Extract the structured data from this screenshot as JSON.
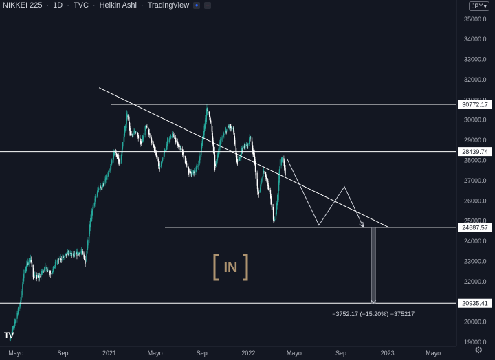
{
  "header": {
    "symbol": "NIKKEI 225",
    "interval": "1D",
    "source": "TVC",
    "chart_style": "Heikin Ashi",
    "platform": "TradingView"
  },
  "currency": "JPY",
  "watermark": "IN",
  "colors": {
    "background": "#131722",
    "bull": "#26a69a",
    "bear": "#ffffff",
    "axis_text": "#b2b5be",
    "hline": "#ffffff",
    "watermark": "#c8a97e"
  },
  "chart_data": {
    "type": "candlestick",
    "x_ticks": [
      "Mayo",
      "Sep",
      "2021",
      "Mayo",
      "Sep",
      "2022",
      "Mayo",
      "Sep",
      "2023",
      "Mayo"
    ],
    "y_ticks": [
      35000,
      34000,
      33000,
      32000,
      31000,
      30000,
      29000,
      28000,
      27000,
      26000,
      25000,
      24000,
      23000,
      22000,
      21000,
      20000,
      19000
    ],
    "ylim": [
      18800,
      35400
    ],
    "price_levels": [
      {
        "label": "30772.17",
        "value": 30772.17
      },
      {
        "label": "28439.74",
        "value": 28439.74
      },
      {
        "label": "24687.57",
        "value": 24687.57
      },
      {
        "label": "20935.41",
        "value": 20935.41
      }
    ],
    "measure_label": "−3752.17 (−15.20%) −375217",
    "price_path": [
      [
        "2020-04-15",
        19200
      ],
      [
        "2020-04-28",
        20000
      ],
      [
        "2020-05-12",
        21000
      ],
      [
        "2020-05-22",
        22500
      ],
      [
        "2020-06-08",
        23200
      ],
      [
        "2020-06-15",
        22300
      ],
      [
        "2020-06-30",
        22200
      ],
      [
        "2020-07-15",
        22700
      ],
      [
        "2020-08-01",
        22400
      ],
      [
        "2020-08-15",
        23000
      ],
      [
        "2020-09-01",
        23200
      ],
      [
        "2020-09-15",
        23400
      ],
      [
        "2020-10-01",
        23300
      ],
      [
        "2020-10-20",
        23500
      ],
      [
        "2020-10-30",
        23000
      ],
      [
        "2020-11-10",
        24800
      ],
      [
        "2020-11-20",
        25800
      ],
      [
        "2020-12-01",
        26500
      ],
      [
        "2020-12-15",
        26800
      ],
      [
        "2020-12-31",
        27400
      ],
      [
        "2021-01-15",
        28500
      ],
      [
        "2021-01-29",
        27800
      ],
      [
        "2021-02-16",
        30400
      ],
      [
        "2021-02-25",
        29200
      ],
      [
        "2021-03-10",
        29500
      ],
      [
        "2021-03-25",
        28800
      ],
      [
        "2021-04-08",
        29800
      ],
      [
        "2021-04-25",
        28800
      ],
      [
        "2021-05-13",
        27600
      ],
      [
        "2021-05-31",
        28800
      ],
      [
        "2021-06-15",
        29300
      ],
      [
        "2021-06-30",
        28800
      ],
      [
        "2021-07-15",
        28200
      ],
      [
        "2021-07-31",
        27300
      ],
      [
        "2021-08-15",
        27500
      ],
      [
        "2021-08-25",
        28000
      ],
      [
        "2021-09-14",
        30600
      ],
      [
        "2021-09-25",
        29800
      ],
      [
        "2021-10-05",
        27600
      ],
      [
        "2021-10-20",
        29000
      ],
      [
        "2021-11-10",
        29700
      ],
      [
        "2021-11-22",
        29500
      ],
      [
        "2021-12-02",
        27800
      ],
      [
        "2021-12-15",
        28600
      ],
      [
        "2021-12-31",
        28800
      ],
      [
        "2022-01-05",
        29300
      ],
      [
        "2022-01-15",
        28200
      ],
      [
        "2022-01-27",
        26200
      ],
      [
        "2022-02-10",
        27600
      ],
      [
        "2022-02-25",
        26500
      ],
      [
        "2022-03-08",
        24900
      ],
      [
        "2022-03-15",
        25500
      ],
      [
        "2022-03-25",
        28000
      ],
      [
        "2022-03-31",
        28100
      ],
      [
        "2022-04-05",
        27700
      ],
      [
        "2022-04-10",
        27100
      ]
    ],
    "trendline": [
      [
        "2020-12-05",
        31600
      ],
      [
        "2023-01-05",
        24687.57
      ]
    ],
    "projection": [
      [
        "2022-04-12",
        28100
      ],
      [
        "2022-07-05",
        24800
      ],
      [
        "2022-09-10",
        26700
      ],
      [
        "2022-10-30",
        24687.57
      ]
    ],
    "measure": {
      "date": "2022-11-25",
      "from": 24687.57,
      "to": 20935.41
    }
  }
}
